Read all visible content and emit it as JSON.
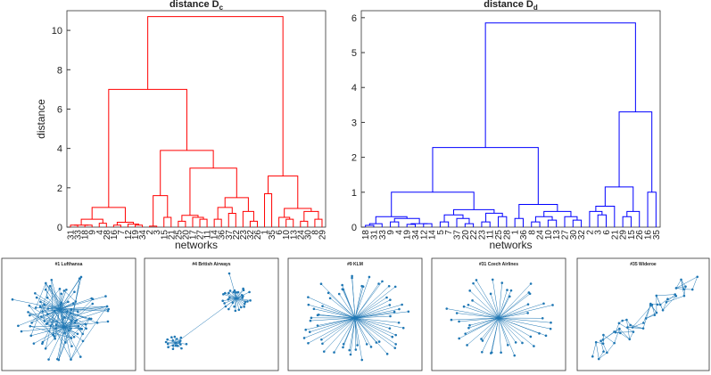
{
  "chart_data": [
    {
      "type": "dendrogram",
      "title": "distance D",
      "title_sub": "c",
      "ylabel": "distance",
      "xlabel": "networks",
      "color": "#ff0000",
      "categories": [
        "31",
        "33",
        "18",
        "9",
        "4",
        "28",
        "16",
        "7",
        "12",
        "19",
        "34",
        "2",
        "3",
        "15",
        "21",
        "25",
        "20",
        "17",
        "27",
        "11",
        "14",
        "36",
        "37",
        "22",
        "23",
        "32",
        "26",
        "1",
        "35",
        "6",
        "10",
        "13",
        "24",
        "30",
        "8",
        "29"
      ],
      "ylim": [
        0,
        11
      ],
      "yticks": [
        0,
        2,
        4,
        6,
        8,
        10
      ],
      "tree": {
        "h": 10.7,
        "c": [
          {
            "h": 7.0,
            "c": [
              {
                "h": 1.0,
                "c": [
                  {
                    "h": 0.4,
                    "c": [
                      {
                        "h": 0.1,
                        "c": [
                          {
                            "h": 0.1,
                            "c": [
                              0,
                              1
                            ]
                          },
                          {
                            "h": 0.1,
                            "c": [
                              2,
                              3
                            ]
                          }
                        ]
                      },
                      {
                        "h": 0.2,
                        "c": [
                          4,
                          5
                        ]
                      }
                    ]
                  },
                  {
                    "h": 0.25,
                    "c": [
                      {
                        "h": 0.1,
                        "c": [
                          6,
                          7
                        ]
                      },
                      {
                        "h": 0.15,
                        "c": [
                          8,
                          {
                            "h": 0.1,
                            "c": [
                              9,
                              10
                            ]
                          }
                        ]
                      }
                    ]
                  }
                ]
              },
              {
                "h": 3.9,
                "c": [
                  {
                    "h": 1.6,
                    "c": [
                      {
                        "h": 0.05,
                        "c": [
                          11,
                          12
                        ]
                      },
                      {
                        "h": 0.5,
                        "c": [
                          13,
                          14
                        ]
                      }
                    ]
                  },
                  {
                    "h": 3.0,
                    "c": [
                      {
                        "h": 0.6,
                        "c": [
                          {
                            "h": 0.3,
                            "c": [
                              15,
                              16
                            ]
                          },
                          {
                            "h": 0.5,
                            "c": [
                              17,
                              {
                                "h": 0.4,
                                "c": [
                                  18,
                                  19
                                ]
                              }
                            ]
                          }
                        ]
                      },
                      {
                        "h": 1.5,
                        "c": [
                          {
                            "h": 1.0,
                            "c": [
                              {
                                "h": 0.4,
                                "c": [
                                  20,
                                  21
                                ]
                              },
                              {
                                "h": 0.7,
                                "c": [
                                  22,
                                  23
                                ]
                              }
                            ]
                          },
                          {
                            "h": 0.8,
                            "c": [
                              24,
                              {
                                "h": 0.3,
                                "c": [
                                  25,
                                  26
                                ]
                              }
                            ]
                          }
                        ]
                      }
                    ]
                  }
                ]
              }
            ]
          },
          {
            "h": 2.6,
            "c": [
              {
                "h": 1.7,
                "c": [
                  27,
                  28
                ]
              },
              {
                "h": 0.95,
                "c": [
                  {
                    "h": 0.5,
                    "c": [
                      29,
                      {
                        "h": 0.4,
                        "c": [
                          30,
                          31
                        ]
                      }
                    ]
                  },
                  {
                    "h": 0.8,
                    "c": [
                      {
                        "h": 0.3,
                        "c": [
                          32,
                          33
                        ]
                      },
                      {
                        "h": 0.4,
                        "c": [
                          34,
                          35
                        ]
                      }
                    ]
                  }
                ]
              }
            ]
          }
        ]
      }
    },
    {
      "type": "dendrogram",
      "title": "distance D",
      "title_sub": "d",
      "xlabel": "networks",
      "color": "#0000ff",
      "categories": [
        "18",
        "31",
        "33",
        "9",
        "4",
        "19",
        "34",
        "12",
        "14",
        "5",
        "7",
        "37",
        "20",
        "22",
        "23",
        "11",
        "25",
        "28",
        "1",
        "36",
        "8",
        "24",
        "10",
        "13",
        "27",
        "30",
        "32",
        "2",
        "3",
        "6",
        "21",
        "29",
        "15",
        "26",
        "16",
        "35"
      ],
      "ylim": [
        0,
        6.2
      ],
      "yticks": [
        0,
        1,
        2,
        3,
        4,
        5,
        6
      ],
      "tree": {
        "h": 5.85,
        "c": [
          {
            "h": 2.28,
            "c": [
              {
                "h": 1.0,
                "c": [
                  {
                    "h": 0.3,
                    "c": [
                      {
                        "h": 0.1,
                        "c": [
                          {
                            "h": 0.05,
                            "c": [
                              0,
                              1
                            ]
                          },
                          2
                        ]
                      },
                      {
                        "h": 0.25,
                        "c": [
                          {
                            "h": 0.15,
                            "c": [
                              3,
                              4
                            ]
                          },
                          {
                            "h": 0.1,
                            "c": [
                              {
                                "h": 0.08,
                                "c": [
                                  5,
                                  6
                                ]
                              },
                              {
                                "h": 0.1,
                                "c": [
                                  7,
                                  8
                                ]
                              }
                            ]
                          }
                        ]
                      }
                    ]
                  },
                  {
                    "h": 0.5,
                    "c": [
                      {
                        "h": 0.35,
                        "c": [
                          {
                            "h": 0.15,
                            "c": [
                              9,
                              10
                            ]
                          },
                          {
                            "h": 0.25,
                            "c": [
                              11,
                              {
                                "h": 0.1,
                                "c": [
                                  12,
                                  13
                                ]
                              }
                            ]
                          }
                        ]
                      },
                      {
                        "h": 0.4,
                        "c": [
                          {
                            "h": 0.15,
                            "c": [
                              14,
                              15
                            ]
                          },
                          {
                            "h": 0.3,
                            "c": [
                              16,
                              17
                            ]
                          }
                        ]
                      }
                    ]
                  }
                ]
              },
              {
                "h": 0.65,
                "c": [
                  {
                    "h": 0.25,
                    "c": [
                      18,
                      19
                    ]
                  },
                  {
                    "h": 0.45,
                    "c": [
                      {
                        "h": 0.3,
                        "c": [
                          {
                            "h": 0.15,
                            "c": [
                              20,
                              21
                            ]
                          },
                          {
                            "h": 0.2,
                            "c": [
                              22,
                              23
                            ]
                          }
                        ]
                      },
                      {
                        "h": 0.3,
                        "c": [
                          24,
                          {
                            "h": 0.2,
                            "c": [
                              25,
                              26
                            ]
                          }
                        ]
                      }
                    ]
                  }
                ]
              }
            ]
          },
          {
            "h": 3.3,
            "c": [
              {
                "h": 1.15,
                "c": [
                  {
                    "h": 0.6,
                    "c": [
                      {
                        "h": 0.45,
                        "c": [
                          27,
                          {
                            "h": 0.35,
                            "c": [
                              28,
                              29
                            ]
                          }
                        ]
                      },
                      30
                    ]
                  },
                  {
                    "h": 0.45,
                    "c": [
                      {
                        "h": 0.3,
                        "c": [
                          31,
                          32
                        ]
                      },
                      33
                    ]
                  }
                ]
              },
              {
                "h": 1.0,
                "c": [
                  34,
                  35
                ]
              }
            ]
          }
        ]
      }
    }
  ],
  "networks": [
    "#1 Lufthansa",
    "#4 British Airways",
    "#9 KLM",
    "#31 Czech Airlines",
    "#35 Wideroe"
  ]
}
